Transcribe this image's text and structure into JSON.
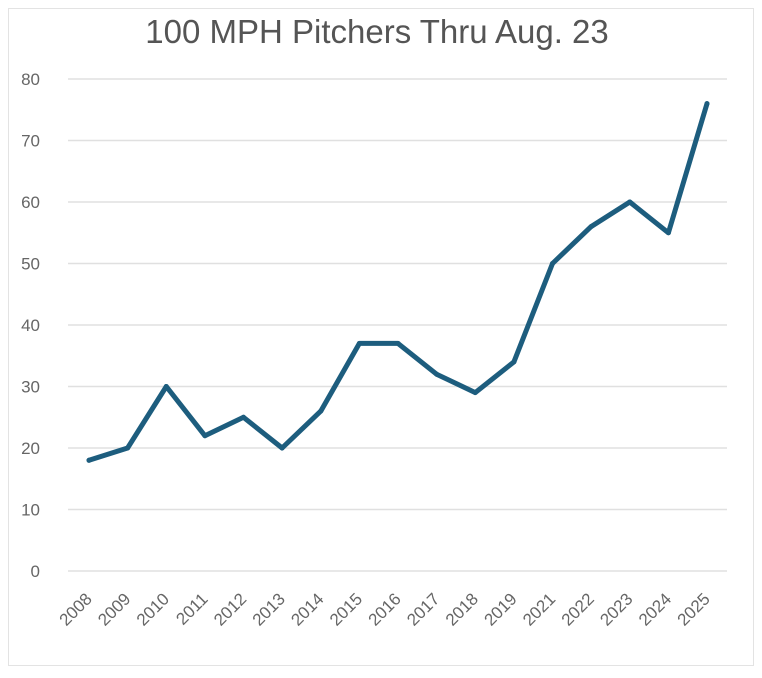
{
  "chart_data": {
    "type": "line",
    "title": "100 MPH Pitchers Thru Aug. 23",
    "xlabel": "",
    "ylabel": "",
    "categories": [
      "2008",
      "2009",
      "2010",
      "2011",
      "2012",
      "2013",
      "2014",
      "2015",
      "2016",
      "2017",
      "2018",
      "2019",
      "2021",
      "2022",
      "2023",
      "2024",
      "2025"
    ],
    "series": [
      {
        "values": [
          18,
          20,
          30,
          22,
          25,
          20,
          26,
          37,
          37,
          32,
          29,
          34,
          50,
          56,
          60,
          55,
          76
        ],
        "color": "#1d5d7e"
      }
    ],
    "ylim": [
      0,
      80
    ],
    "yticks": [
      "0",
      "10",
      "20",
      "30",
      "40",
      "50",
      "60",
      "70",
      "80"
    ],
    "grid": true,
    "legend": "none"
  }
}
